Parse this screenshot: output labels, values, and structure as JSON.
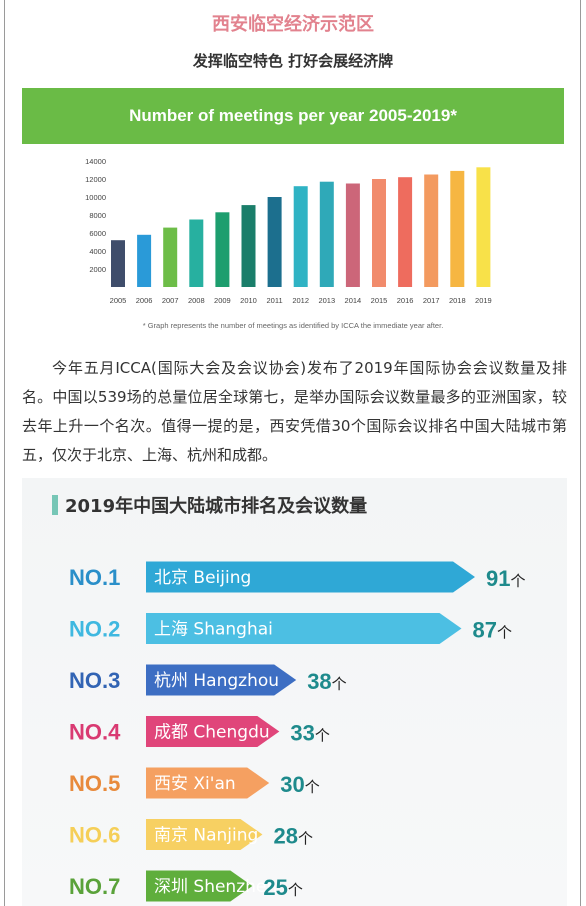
{
  "header": {
    "title": "西安临空经济示范区",
    "subtitle": "发挥临空特色 打好会展经济牌"
  },
  "body_text": "今年五月ICCA(国际大会及会议协会)发布了2019年国际协会会议数量及排名。中国以539场的总量位居全球第七，是举办国际会议数量最多的亚洲国家，较去年上升一个名次。值得一提的是，西安凭借30个国际会议排名中国大陆城市第五，仅次于北京、上海、杭州和成都。",
  "chart_data": [
    {
      "type": "bar",
      "title": "Number of meetings per year 2005-2019*",
      "footnote": "* Graph represents the number of meetings as identified by ICCA the immediate year after.",
      "categories": [
        "2005",
        "2006",
        "2007",
        "2008",
        "2009",
        "2010",
        "2011",
        "2012",
        "2013",
        "2014",
        "2015",
        "2016",
        "2017",
        "2018",
        "2019"
      ],
      "values": [
        5200,
        5800,
        6600,
        7500,
        8300,
        9100,
        10000,
        11200,
        11700,
        11500,
        12000,
        12200,
        12500,
        12900,
        13300
      ],
      "ylim": [
        0,
        14000
      ],
      "yticks": [
        2000,
        4000,
        6000,
        8000,
        10000,
        12000,
        14000
      ],
      "colors": [
        "#3f4d6b",
        "#2a9ad8",
        "#6dbd48",
        "#27b0a0",
        "#1d9e6e",
        "#1a7e6a",
        "#1c6f8e",
        "#2fb3c4",
        "#2fa9b8",
        "#cc6679",
        "#f18b6c",
        "#ee6c5e",
        "#f39a5f",
        "#f6b642",
        "#f8e149"
      ],
      "grid": false
    },
    {
      "type": "bar",
      "orientation": "horizontal",
      "title": "2019年中国大陆城市排名及会议数量",
      "ranks": [
        "NO.1",
        "NO.2",
        "NO.3",
        "NO.4",
        "NO.5",
        "NO.6",
        "NO.7"
      ],
      "categories": [
        "北京 Beijing",
        "上海 Shanghai",
        "杭州 Hangzhou",
        "成都 Chengdu",
        "西安 Xi'an",
        "南京 Nanjing",
        "深圳 Shenzhen"
      ],
      "values": [
        91,
        87,
        38,
        33,
        30,
        28,
        25
      ],
      "unit": "个",
      "colors": [
        "#2fa8d6",
        "#4cbfe3",
        "#3d6ec3",
        "#e0457a",
        "#f5a061",
        "#f7d062",
        "#5fae3c"
      ],
      "rank_colors": [
        "#2a8fc9",
        "#3fb8e0",
        "#3264b4",
        "#d93a72",
        "#e88a3c",
        "#f5cf58",
        "#5aa23a"
      ],
      "value_color": "#1e8a8c"
    }
  ]
}
